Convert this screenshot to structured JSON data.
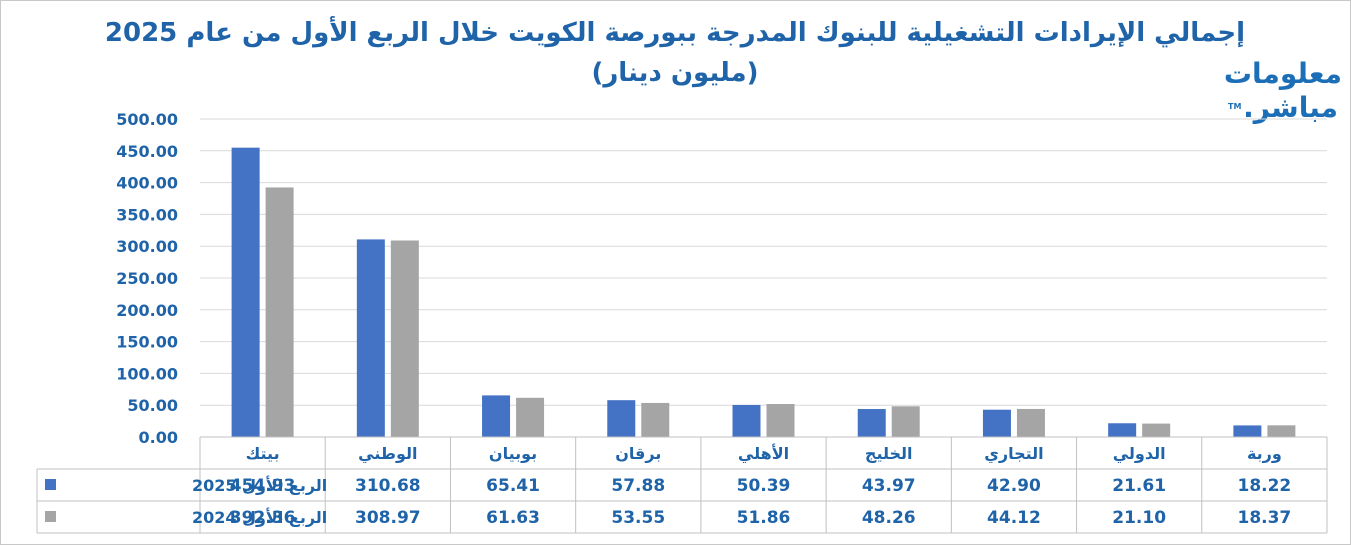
{
  "chart_data": {
    "type": "bar",
    "title": "إجمالي الإيرادات التشغيلية للبنوك المدرجة ببورصة الكويت خلال الربع الأول من عام 2025",
    "subtitle": "(مليون دينار)",
    "categories": [
      "بيتك",
      "الوطني",
      "بوبيان",
      "برقان",
      "الأهلي",
      "الخليج",
      "التجاري",
      "الدولي",
      "وربة"
    ],
    "series": [
      {
        "name": "الربع الأول 2025",
        "color": "#4472c4",
        "values": [
          454.93,
          310.68,
          65.41,
          57.88,
          50.39,
          43.97,
          42.9,
          21.61,
          18.22
        ],
        "labels": [
          "454.93",
          "310.68",
          "65.41",
          "57.88",
          "50.39",
          "43.97",
          "42.90",
          "21.61",
          "18.22"
        ]
      },
      {
        "name": "الربع الأول 2024",
        "color": "#a5a5a5",
        "values": [
          392.36,
          308.97,
          61.63,
          53.55,
          51.86,
          48.26,
          44.12,
          21.1,
          18.37
        ],
        "labels": [
          "392.36",
          "308.97",
          "61.63",
          "53.55",
          "51.86",
          "48.26",
          "44.12",
          "21.10",
          "18.37"
        ]
      }
    ],
    "ylim": [
      0,
      500
    ],
    "yticks": [
      "0.00",
      "50.00",
      "100.00",
      "150.00",
      "200.00",
      "250.00",
      "300.00",
      "350.00",
      "400.00",
      "450.00",
      "500.00"
    ],
    "grid": true,
    "legend": "data-table"
  },
  "logo": {
    "line1": "معلومات",
    "line2": "مباشر.",
    "tm": "TM"
  },
  "colors": {
    "title": "#1f63a8",
    "axis_text": "#1f63a8",
    "grid": "#d9d9d9"
  }
}
